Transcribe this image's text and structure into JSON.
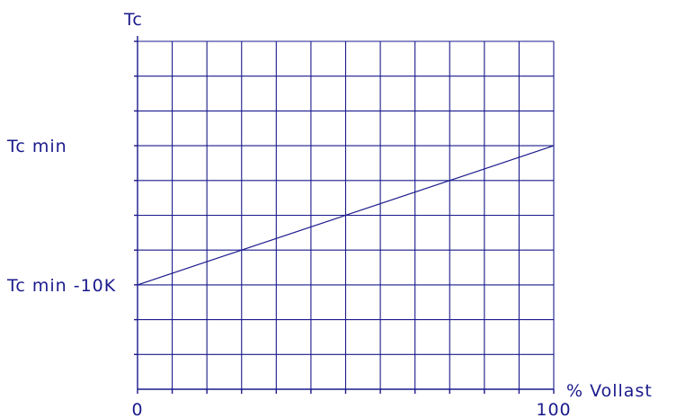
{
  "chart_data": {
    "type": "line",
    "ylabel": "Tc",
    "xlabel": "% Vollast",
    "xlim": [
      0,
      100
    ],
    "ylim": [
      0,
      10
    ],
    "x_ticks": [
      {
        "value": 0,
        "label": "0"
      },
      {
        "value": 100,
        "label": "100"
      }
    ],
    "y_labels": [
      {
        "value": 7,
        "label": "Tc min"
      },
      {
        "value": 3,
        "label": "Tc min -10K"
      }
    ],
    "x_grid_count": 12,
    "y_grid_count": 10,
    "grid": true,
    "series": [
      {
        "x": [
          0,
          100
        ],
        "y": [
          3,
          7
        ]
      }
    ],
    "colors": {
      "ink": "#1a1a8c"
    }
  }
}
